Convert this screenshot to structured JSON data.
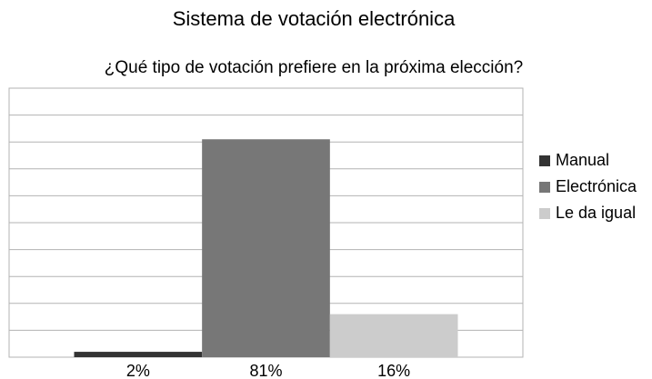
{
  "chart_data": {
    "type": "bar",
    "title": "Sistema de votación electrónica",
    "subtitle": "¿Qué tipo de votación prefiere en la próxima elección?",
    "series": [
      {
        "name": "Manual",
        "color": "#333333",
        "values": [
          2
        ],
        "value_labels": [
          "2%"
        ]
      },
      {
        "name": "Electrónica",
        "color": "#777777",
        "values": [
          81
        ],
        "value_labels": [
          "81%"
        ]
      },
      {
        "name": "Le da igual",
        "color": "#cccccc",
        "values": [
          16
        ],
        "value_labels": [
          "16%"
        ]
      }
    ],
    "ylim": [
      0,
      100
    ],
    "yticks": [
      0,
      10,
      20,
      30,
      40,
      50,
      60,
      70,
      80,
      90,
      100
    ],
    "grid": true,
    "legend": "right"
  }
}
